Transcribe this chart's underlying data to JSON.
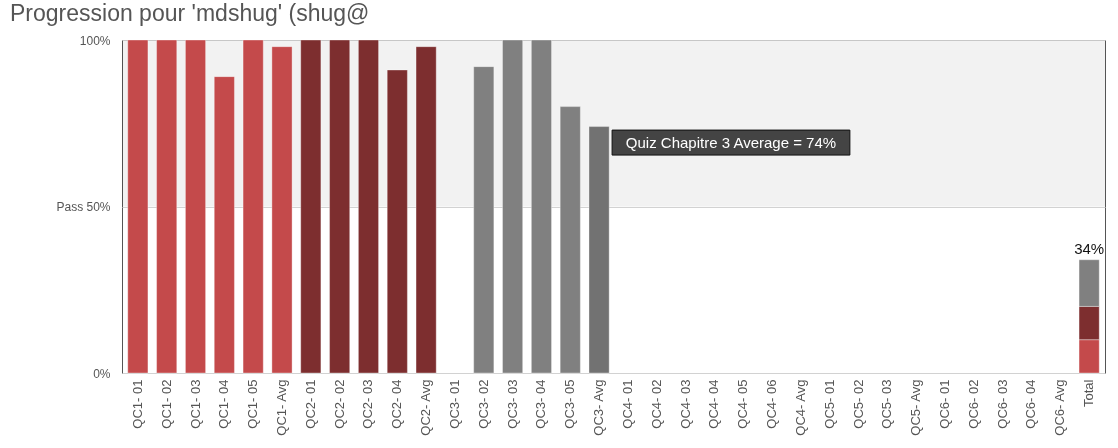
{
  "chart_data": {
    "type": "bar",
    "title": "Progression pour 'mdshug' (shug@",
    "categories": [
      "QC1- 01",
      "QC1- 02",
      "QC1- 03",
      "QC1- 04",
      "QC1- 05",
      "QC1- Avg",
      "QC2- 01",
      "QC2- 02",
      "QC2- 03",
      "QC2- 04",
      "QC2- Avg",
      "QC3- 01",
      "QC3- 02",
      "QC3- 03",
      "QC3- 04",
      "QC3- 05",
      "QC3- Avg",
      "QC4- 01",
      "QC4- 02",
      "QC4- 03",
      "QC4- 04",
      "QC4- 05",
      "QC4- 06",
      "QC4- Avg",
      "QC5- 01",
      "QC5- 02",
      "QC5- 03",
      "QC5- Avg",
      "QC6- 01",
      "QC6- 02",
      "QC6- 03",
      "QC6- 04",
      "QC6- Avg",
      "Total"
    ],
    "stacked": true,
    "series": [
      {
        "color": "#c44a4b",
        "values": [
          100,
          100,
          100,
          89,
          100,
          98,
          null,
          null,
          null,
          null,
          null,
          null,
          null,
          null,
          null,
          null,
          null,
          null,
          null,
          null,
          null,
          null,
          null,
          null,
          null,
          null,
          null,
          null,
          null,
          null,
          null,
          null,
          null,
          10
        ]
      },
      {
        "color": "#7d2e2f",
        "values": [
          null,
          null,
          null,
          null,
          null,
          null,
          100,
          100,
          100,
          91,
          98,
          null,
          null,
          null,
          null,
          null,
          null,
          null,
          null,
          null,
          null,
          null,
          null,
          null,
          null,
          null,
          null,
          null,
          null,
          null,
          null,
          null,
          null,
          10
        ]
      },
      {
        "color": "#808080",
        "colors": [
          null,
          null,
          null,
          null,
          null,
          null,
          null,
          null,
          null,
          null,
          null,
          null,
          null,
          null,
          null,
          null,
          "#727272",
          null,
          null,
          null,
          null,
          null,
          null,
          null,
          null,
          null,
          null,
          null,
          null,
          null,
          null,
          null,
          null,
          null
        ],
        "values": [
          null,
          null,
          null,
          null,
          null,
          null,
          null,
          null,
          null,
          null,
          null,
          null,
          92,
          100,
          100,
          80,
          74,
          null,
          null,
          null,
          null,
          null,
          null,
          null,
          null,
          null,
          null,
          null,
          null,
          null,
          null,
          null,
          null,
          14
        ]
      }
    ],
    "totals": [
      null,
      null,
      null,
      null,
      null,
      null,
      null,
      null,
      null,
      null,
      null,
      null,
      null,
      null,
      null,
      null,
      null,
      null,
      null,
      null,
      null,
      null,
      null,
      null,
      null,
      null,
      null,
      null,
      null,
      null,
      null,
      null,
      null,
      "34%"
    ],
    "ylim": [
      0,
      100
    ],
    "yticks": [
      {
        "value": 0,
        "label": "0%"
      },
      {
        "value": 50,
        "label": "Pass 50%"
      },
      {
        "value": 100,
        "label": "100%"
      }
    ],
    "grid": "y",
    "bands": [
      {
        "axis": "y",
        "from": 50,
        "to": 100,
        "color": "#f2f2f2"
      }
    ],
    "annotations": [
      {
        "text": "Quiz Chapitre 3 Average = 74%",
        "x": "QC3- Avg",
        "y": 74
      }
    ]
  }
}
